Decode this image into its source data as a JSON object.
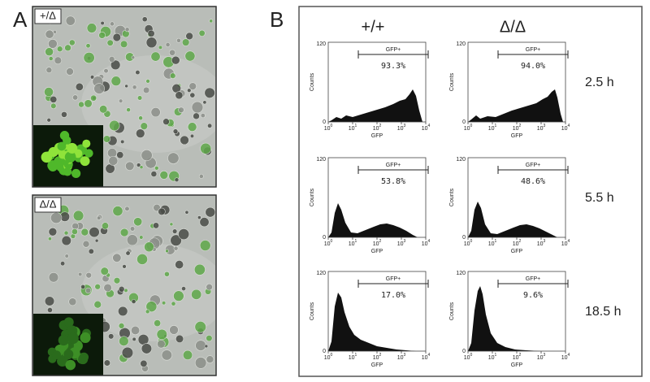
{
  "panel_a": {
    "label": "A",
    "images": [
      {
        "label": "+/Δ"
      },
      {
        "label": "Δ/Δ"
      }
    ]
  },
  "panel_b": {
    "label": "B",
    "columns": [
      "+/+",
      "Δ/Δ"
    ],
    "rows": [
      {
        "time": "2.5 h",
        "gates": [
          "93.3%",
          "94.0%"
        ]
      },
      {
        "time": "5.5 h",
        "gates": [
          "53.8%",
          "48.6%"
        ]
      },
      {
        "time": "18.5 h",
        "gates": [
          "17.0%",
          "9.6%"
        ]
      }
    ],
    "gate_label": "GFP+",
    "y_axis_label": "Counts",
    "x_axis_label": "GFP",
    "yticks": [
      "0",
      "120"
    ],
    "xtick_base": "10",
    "xtick_exponents": [
      "0",
      "1",
      "2",
      "3",
      "4"
    ]
  }
}
